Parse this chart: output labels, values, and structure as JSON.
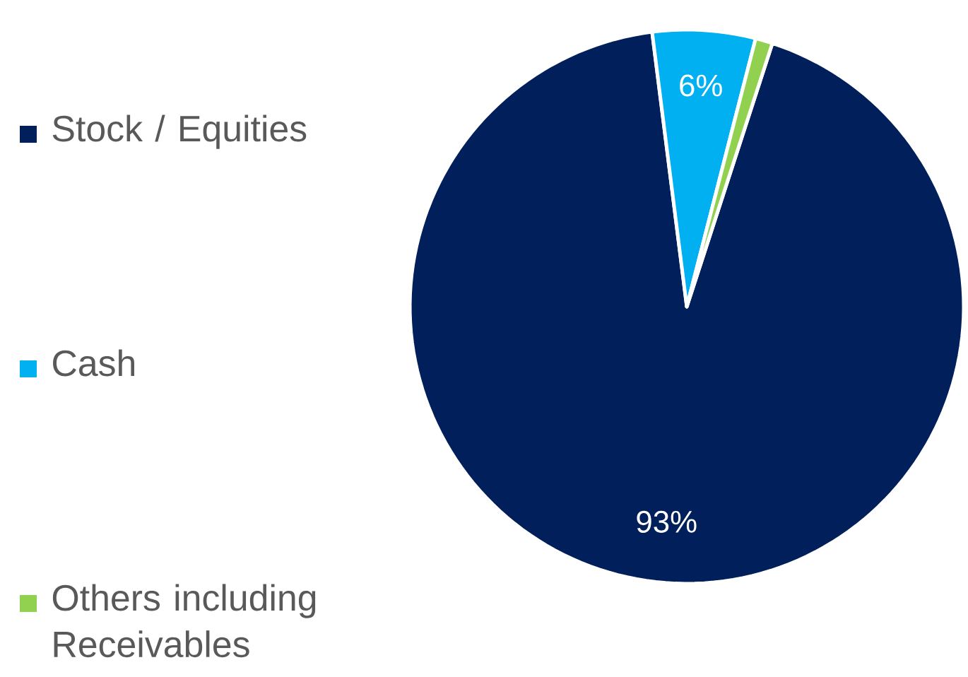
{
  "chart_data": {
    "type": "pie",
    "categories": [
      "Stock / Equities",
      "Cash",
      "Others including Receivables"
    ],
    "values": [
      93,
      6,
      1
    ],
    "colors": [
      "#001f5b",
      "#00b0f0",
      "#92d050"
    ],
    "value_labels": [
      "93%",
      "6%",
      null
    ],
    "legend": "left"
  }
}
